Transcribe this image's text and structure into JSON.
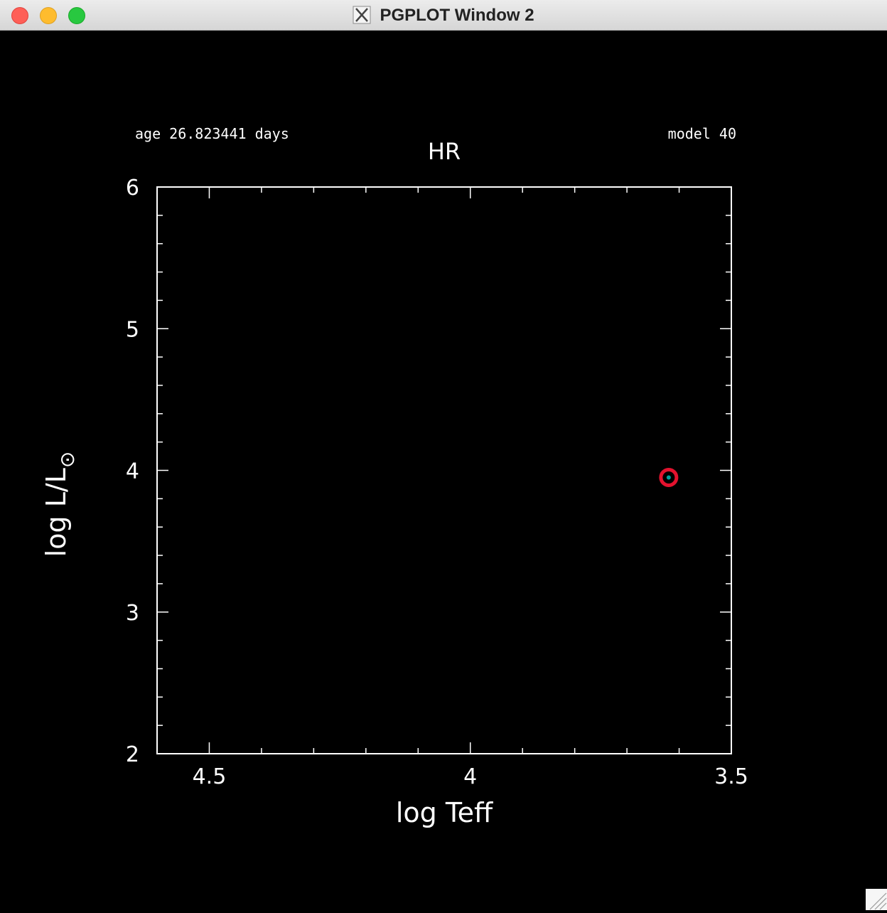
{
  "window": {
    "title": "PGPLOT Window 2",
    "icon": "x11-icon",
    "controls": [
      "close",
      "minimize",
      "zoom"
    ]
  },
  "plot": {
    "age_text": "age 26.823441 days",
    "model_text": "model 40",
    "background": "#000000",
    "foreground": "#ffffff"
  },
  "chart_data": {
    "type": "scatter",
    "title": "HR",
    "xlabel": "log Teff",
    "ylabel_parts": [
      "log L/L",
      "⊙"
    ],
    "xlim": [
      4.6,
      3.5
    ],
    "ylim": [
      2,
      6
    ],
    "x_ticks": [
      4.5,
      4,
      3.5
    ],
    "x_tick_labels": [
      "4.5",
      "4",
      "3.5"
    ],
    "x_minor_step": 0.1,
    "y_ticks": [
      2,
      3,
      4,
      5,
      6
    ],
    "y_tick_labels": [
      "2",
      "3",
      "4",
      "5",
      "6"
    ],
    "y_minor_step": 0.2,
    "x_reversed": true,
    "grid": false,
    "legend": "none",
    "points": [
      {
        "x": 3.62,
        "y": 3.95,
        "marker": "circle",
        "ring_color": "#e3122e",
        "center_color": "#00a0a0"
      }
    ]
  }
}
